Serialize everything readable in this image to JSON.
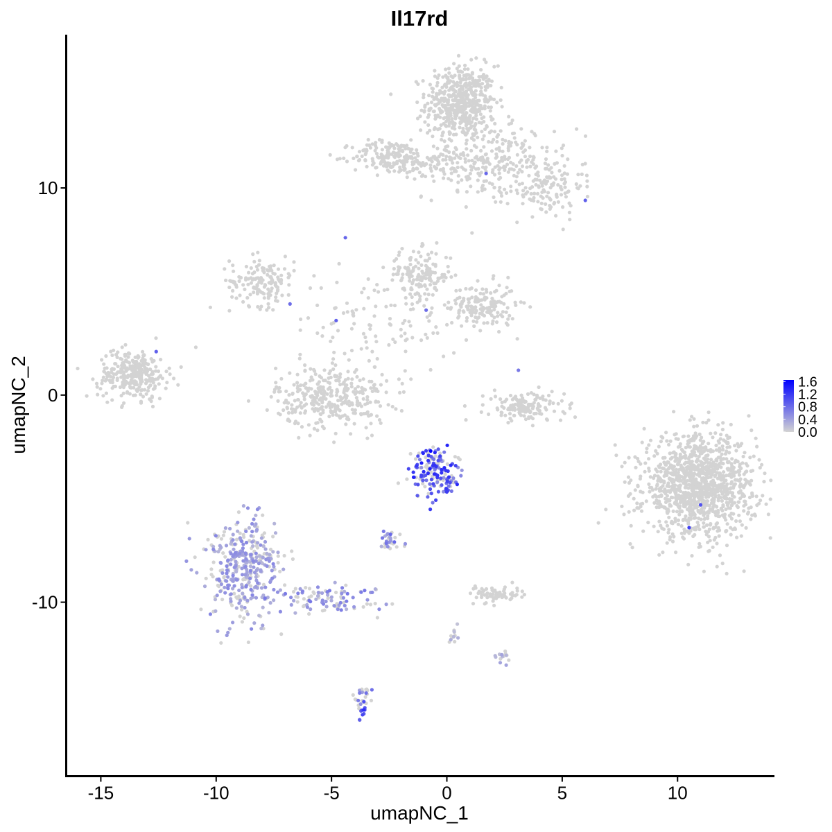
{
  "chart_data": {
    "type": "scatter",
    "title": "Il17rd",
    "xlabel": "umapNC_1",
    "ylabel": "umapNC_2",
    "xlim": [
      -16.5,
      14.2
    ],
    "ylim": [
      -18.4,
      17.4
    ],
    "x_ticks": [
      -15,
      -10,
      -5,
      0,
      5,
      10
    ],
    "x_tick_labels": [
      "-15",
      "-10",
      "-5",
      "0",
      "5",
      "10"
    ],
    "y_ticks": [
      -10,
      0,
      10
    ],
    "y_tick_labels": [
      "-10",
      "0",
      "10"
    ],
    "grid": false,
    "color_scale": {
      "low_color": "#d3d3d3",
      "high_color": "#0000ff",
      "min": 0.0,
      "max": 1.65,
      "breaks": [
        0.0,
        0.4,
        0.8,
        1.2,
        1.6
      ],
      "break_labels": [
        "0.0",
        "0.4",
        "0.8",
        "1.2",
        "1.6"
      ],
      "legend_position": "right"
    },
    "clusters": [
      {
        "cx": 0.6,
        "cy": 14.1,
        "sx": 0.75,
        "sy": 0.9,
        "n": 520,
        "expr": 0
      },
      {
        "cx": 1.8,
        "cy": 11.3,
        "sx": 1.4,
        "sy": 0.9,
        "n": 260,
        "expr": 0
      },
      {
        "cx": 4.3,
        "cy": 10.1,
        "sx": 0.8,
        "sy": 0.8,
        "n": 130,
        "expr": 0
      },
      {
        "cx": -2.4,
        "cy": 11.5,
        "sx": 0.85,
        "sy": 0.4,
        "n": 170,
        "expr": 0
      },
      {
        "cx": -0.6,
        "cy": 11.1,
        "sx": 0.8,
        "sy": 0.25,
        "n": 50,
        "expr": 0
      },
      {
        "cx": -8.0,
        "cy": 5.5,
        "sx": 0.7,
        "sy": 0.6,
        "n": 150,
        "expr": 0
      },
      {
        "cx": -1.2,
        "cy": 5.8,
        "sx": 0.7,
        "sy": 0.6,
        "n": 150,
        "expr": 0
      },
      {
        "cx": 1.6,
        "cy": 4.3,
        "sx": 0.7,
        "sy": 0.55,
        "n": 160,
        "expr": 0
      },
      {
        "cx": -3.0,
        "cy": 3.5,
        "sx": 1.8,
        "sy": 1.2,
        "n": 110,
        "expr": 0
      },
      {
        "cx": -5.0,
        "cy": -0.1,
        "sx": 1.2,
        "sy": 0.75,
        "n": 340,
        "expr": 0
      },
      {
        "cx": -13.6,
        "cy": 1.0,
        "sx": 0.75,
        "sy": 0.6,
        "n": 290,
        "expr": 0
      },
      {
        "cx": 3.4,
        "cy": -0.6,
        "sx": 0.85,
        "sy": 0.35,
        "n": 150,
        "expr": 0
      },
      {
        "cx": 10.9,
        "cy": -4.4,
        "sx": 1.2,
        "sy": 1.2,
        "n": 1200,
        "expr": 0
      },
      {
        "cx": -0.5,
        "cy": -3.8,
        "sx": 0.55,
        "sy": 0.55,
        "n": 170,
        "expr": 0.95
      },
      {
        "cx": -8.8,
        "cy": -8.4,
        "sx": 0.85,
        "sy": 1.15,
        "n": 380,
        "expr": 0.4
      },
      {
        "cx": -5.4,
        "cy": -9.8,
        "sx": 1.2,
        "sy": 0.35,
        "n": 100,
        "expr": 0.5
      },
      {
        "cx": -3.7,
        "cy": -14.7,
        "sx": 0.18,
        "sy": 0.45,
        "n": 32,
        "expr": 0.8
      },
      {
        "cx": 2.1,
        "cy": -9.6,
        "sx": 0.55,
        "sy": 0.2,
        "n": 70,
        "expr": 0
      },
      {
        "cx": -2.5,
        "cy": -7.0,
        "sx": 0.3,
        "sy": 0.25,
        "n": 30,
        "expr": 0.55
      },
      {
        "cx": 0.2,
        "cy": -11.7,
        "sx": 0.15,
        "sy": 0.25,
        "n": 12,
        "expr": 0.2
      },
      {
        "cx": 2.4,
        "cy": -12.6,
        "sx": 0.2,
        "sy": 0.15,
        "n": 14,
        "expr": 0.3
      }
    ],
    "notable_points": [
      {
        "x": -0.7,
        "y": -2.7,
        "value": 1.65
      },
      {
        "x": -3.6,
        "y": -15.2,
        "value": 1.3
      },
      {
        "x": 10.5,
        "y": -6.4,
        "value": 1.15
      },
      {
        "x": 11.0,
        "y": -5.3,
        "value": 1.0
      },
      {
        "x": -4.8,
        "y": 3.6,
        "value": 0.9
      },
      {
        "x": -4.4,
        "y": 7.6,
        "value": 0.85
      },
      {
        "x": 6.0,
        "y": 9.4,
        "value": 0.9
      },
      {
        "x": 1.7,
        "y": 10.7,
        "value": 0.85
      },
      {
        "x": -0.9,
        "y": 4.1,
        "value": 0.8
      },
      {
        "x": -12.6,
        "y": 2.1,
        "value": 0.9
      },
      {
        "x": -6.8,
        "y": 4.4,
        "value": 0.8
      },
      {
        "x": 3.1,
        "y": 1.2,
        "value": 0.7
      }
    ]
  }
}
